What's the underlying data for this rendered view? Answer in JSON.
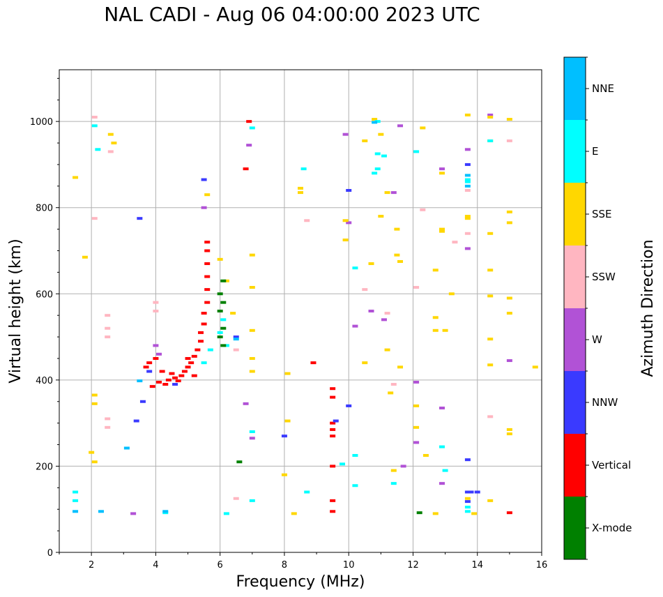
{
  "chart_data": {
    "type": "scatter",
    "title": "NAL CADI - Aug 06 04:00:00 2023 UTC",
    "xlabel": "Frequency (MHz)",
    "ylabel": "Virtual height (km)",
    "xlim": [
      1,
      16
    ],
    "ylim": [
      0,
      1120
    ],
    "xticks": [
      2,
      4,
      6,
      8,
      10,
      12,
      14,
      16
    ],
    "yticks": [
      0,
      200,
      400,
      600,
      800,
      1000
    ],
    "grid": true,
    "colorbar": {
      "label": "Azimuth Direction",
      "categories": [
        {
          "name": "X-mode",
          "color": "#008000"
        },
        {
          "name": "Vertical",
          "color": "#ff0000"
        },
        {
          "name": "NNW",
          "color": "#3a3aff"
        },
        {
          "name": "W",
          "color": "#b152d6"
        },
        {
          "name": "SSW",
          "color": "#ffb6c1"
        },
        {
          "name": "SSE",
          "color": "#ffd700"
        },
        {
          "name": "E",
          "color": "#00ffff"
        },
        {
          "name": "NNE",
          "color": "#00bfff"
        }
      ]
    },
    "series": [
      {
        "name": "Vertical",
        "points": [
          [
            3.9,
            385
          ],
          [
            4.1,
            395
          ],
          [
            4.3,
            390
          ],
          [
            4.4,
            400
          ],
          [
            4.6,
            405
          ],
          [
            4.8,
            410
          ],
          [
            4.9,
            420
          ],
          [
            5.0,
            430
          ],
          [
            5.1,
            440
          ],
          [
            5.2,
            455
          ],
          [
            5.3,
            470
          ],
          [
            5.4,
            490
          ],
          [
            5.4,
            510
          ],
          [
            5.5,
            530
          ],
          [
            5.5,
            555
          ],
          [
            5.6,
            580
          ],
          [
            5.6,
            610
          ],
          [
            5.6,
            640
          ],
          [
            5.6,
            670
          ],
          [
            5.6,
            700
          ],
          [
            5.6,
            720
          ],
          [
            4.2,
            420
          ],
          [
            4.5,
            415
          ],
          [
            4.7,
            398
          ],
          [
            5.0,
            450
          ],
          [
            5.2,
            410
          ],
          [
            4.0,
            450
          ],
          [
            3.8,
            440
          ],
          [
            3.7,
            430
          ],
          [
            9.5,
            380
          ],
          [
            9.5,
            360
          ],
          [
            9.5,
            300
          ],
          [
            9.5,
            285
          ],
          [
            9.5,
            270
          ],
          [
            9.5,
            200
          ],
          [
            9.5,
            120
          ],
          [
            9.5,
            95
          ],
          [
            8.9,
            440
          ],
          [
            6.9,
            1000
          ],
          [
            6.8,
            890
          ],
          [
            15.0,
            92
          ]
        ]
      },
      {
        "name": "NNW",
        "points": [
          [
            3.5,
            775
          ],
          [
            3.4,
            305
          ],
          [
            3.6,
            350
          ],
          [
            3.8,
            420
          ],
          [
            4.6,
            390
          ],
          [
            5.5,
            865
          ],
          [
            10.0,
            840
          ],
          [
            10.0,
            340
          ],
          [
            13.7,
            900
          ],
          [
            13.7,
            215
          ],
          [
            13.7,
            140
          ],
          [
            13.7,
            118
          ],
          [
            14.0,
            140
          ],
          [
            13.8,
            140
          ],
          [
            9.6,
            305
          ],
          [
            6.5,
            500
          ],
          [
            8.0,
            270
          ]
        ]
      },
      {
        "name": "W",
        "points": [
          [
            3.3,
            90
          ],
          [
            4.0,
            480
          ],
          [
            4.1,
            460
          ],
          [
            5.5,
            800
          ],
          [
            6.9,
            945
          ],
          [
            6.8,
            345
          ],
          [
            7.0,
            265
          ],
          [
            9.9,
            970
          ],
          [
            10.0,
            765
          ],
          [
            10.2,
            525
          ],
          [
            10.7,
            560
          ],
          [
            11.1,
            540
          ],
          [
            11.6,
            990
          ],
          [
            11.4,
            835
          ],
          [
            12.1,
            395
          ],
          [
            12.1,
            255
          ],
          [
            12.9,
            890
          ],
          [
            12.9,
            335
          ],
          [
            12.9,
            160
          ],
          [
            13.7,
            935
          ],
          [
            13.7,
            705
          ],
          [
            14.4,
            1015
          ],
          [
            15.0,
            445
          ],
          [
            11.7,
            200
          ]
        ]
      },
      {
        "name": "SSW",
        "points": [
          [
            2.1,
            1010
          ],
          [
            2.1,
            775
          ],
          [
            2.5,
            550
          ],
          [
            2.5,
            520
          ],
          [
            2.5,
            500
          ],
          [
            2.5,
            310
          ],
          [
            2.5,
            290
          ],
          [
            2.6,
            930
          ],
          [
            4.0,
            560
          ],
          [
            4.0,
            580
          ],
          [
            6.5,
            125
          ],
          [
            6.5,
            470
          ],
          [
            8.7,
            770
          ],
          [
            10.5,
            610
          ],
          [
            11.2,
            555
          ],
          [
            11.4,
            390
          ],
          [
            12.3,
            795
          ],
          [
            12.1,
            615
          ],
          [
            13.3,
            720
          ],
          [
            13.7,
            840
          ],
          [
            13.7,
            740
          ],
          [
            14.4,
            315
          ],
          [
            15.0,
            955
          ]
        ]
      },
      {
        "name": "SSE",
        "points": [
          [
            1.5,
            870
          ],
          [
            1.8,
            685
          ],
          [
            2.1,
            365
          ],
          [
            2.1,
            345
          ],
          [
            2.1,
            210
          ],
          [
            2.0,
            232
          ],
          [
            2.6,
            970
          ],
          [
            2.7,
            950
          ],
          [
            5.6,
            830
          ],
          [
            6.0,
            680
          ],
          [
            6.2,
            630
          ],
          [
            6.4,
            555
          ],
          [
            7.0,
            690
          ],
          [
            7.0,
            615
          ],
          [
            7.0,
            515
          ],
          [
            7.0,
            450
          ],
          [
            7.0,
            420
          ],
          [
            8.1,
            415
          ],
          [
            8.1,
            305
          ],
          [
            8.0,
            180
          ],
          [
            8.5,
            845
          ],
          [
            8.5,
            835
          ],
          [
            9.9,
            770
          ],
          [
            9.9,
            725
          ],
          [
            10.5,
            955
          ],
          [
            10.5,
            440
          ],
          [
            10.7,
            670
          ],
          [
            10.8,
            1005
          ],
          [
            11.0,
            970
          ],
          [
            11.0,
            780
          ],
          [
            11.2,
            835
          ],
          [
            11.2,
            470
          ],
          [
            11.3,
            370
          ],
          [
            11.4,
            190
          ],
          [
            11.5,
            750
          ],
          [
            11.5,
            690
          ],
          [
            11.6,
            675
          ],
          [
            11.6,
            430
          ],
          [
            12.1,
            340
          ],
          [
            12.1,
            290
          ],
          [
            12.3,
            985
          ],
          [
            12.4,
            225
          ],
          [
            12.7,
            655
          ],
          [
            12.7,
            545
          ],
          [
            12.7,
            515
          ],
          [
            12.9,
            880
          ],
          [
            12.9,
            750
          ],
          [
            12.9,
            745
          ],
          [
            13.0,
            515
          ],
          [
            13.2,
            600
          ],
          [
            13.7,
            1015
          ],
          [
            13.7,
            780
          ],
          [
            13.7,
            775
          ],
          [
            13.7,
            125
          ],
          [
            14.4,
            1010
          ],
          [
            14.4,
            955
          ],
          [
            14.4,
            740
          ],
          [
            14.4,
            655
          ],
          [
            14.4,
            595
          ],
          [
            14.4,
            495
          ],
          [
            14.4,
            435
          ],
          [
            14.4,
            120
          ],
          [
            15.0,
            1005
          ],
          [
            15.0,
            790
          ],
          [
            15.0,
            765
          ],
          [
            15.0,
            590
          ],
          [
            15.0,
            555
          ],
          [
            15.0,
            285
          ],
          [
            15.0,
            275
          ],
          [
            15.8,
            430
          ],
          [
            12.7,
            90
          ],
          [
            13.9,
            90
          ],
          [
            8.3,
            90
          ]
        ]
      },
      {
        "name": "E",
        "points": [
          [
            1.5,
            140
          ],
          [
            1.5,
            120
          ],
          [
            2.1,
            990
          ],
          [
            2.2,
            935
          ],
          [
            4.3,
            92
          ],
          [
            5.5,
            440
          ],
          [
            5.7,
            470
          ],
          [
            6.0,
            510
          ],
          [
            6.1,
            540
          ],
          [
            6.2,
            480
          ],
          [
            7.0,
            985
          ],
          [
            7.0,
            280
          ],
          [
            7.0,
            120
          ],
          [
            8.6,
            890
          ],
          [
            9.8,
            205
          ],
          [
            10.2,
            660
          ],
          [
            10.2,
            225
          ],
          [
            10.2,
            155
          ],
          [
            10.9,
            925
          ],
          [
            10.9,
            890
          ],
          [
            10.8,
            880
          ],
          [
            10.9,
            1000
          ],
          [
            11.1,
            920
          ],
          [
            11.4,
            160
          ],
          [
            12.1,
            930
          ],
          [
            12.9,
            245
          ],
          [
            13.0,
            190
          ],
          [
            13.7,
            865
          ],
          [
            13.7,
            860
          ],
          [
            13.7,
            105
          ],
          [
            13.7,
            95
          ],
          [
            14.4,
            955
          ],
          [
            8.7,
            140
          ],
          [
            6.2,
            90
          ]
        ]
      },
      {
        "name": "X-mode",
        "points": [
          [
            6.1,
            630
          ],
          [
            6.0,
            600
          ],
          [
            6.1,
            580
          ],
          [
            6.0,
            560
          ],
          [
            6.1,
            520
          ],
          [
            6.0,
            500
          ],
          [
            6.1,
            480
          ],
          [
            6.6,
            210
          ],
          [
            12.2,
            92
          ]
        ]
      },
      {
        "name": "NNE",
        "points": [
          [
            2.3,
            95
          ],
          [
            1.5,
            95
          ],
          [
            3.1,
            242
          ],
          [
            3.5,
            398
          ],
          [
            4.3,
            95
          ],
          [
            6.5,
            495
          ],
          [
            10.8,
            998
          ],
          [
            13.7,
            850
          ],
          [
            13.7,
            875
          ]
        ]
      }
    ]
  }
}
